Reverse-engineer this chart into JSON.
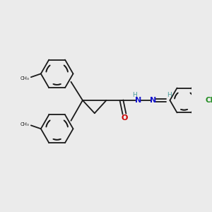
{
  "bg_color": "#ebebeb",
  "bond_color": "#1a1a1a",
  "N_color": "#1414cc",
  "O_color": "#cc0000",
  "Cl_color": "#1e8b1e",
  "H_color": "#4a9a9a",
  "line_width": 1.3,
  "figsize": [
    3.0,
    3.0
  ],
  "dpi": 100,
  "xlim": [
    0,
    10
  ],
  "ylim": [
    0,
    10
  ]
}
